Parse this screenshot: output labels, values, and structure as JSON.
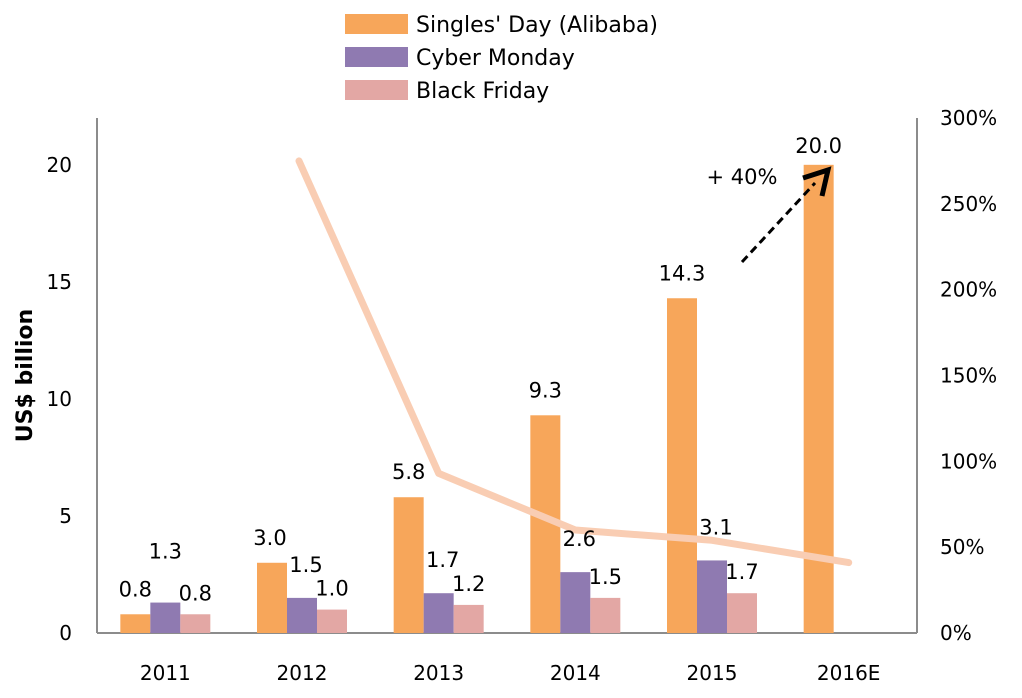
{
  "chart_data": {
    "type": "bar",
    "categories": [
      "2011",
      "2012",
      "2013",
      "2014",
      "2015",
      "2016E"
    ],
    "series": [
      {
        "name": "Singles' Day (Alibaba)",
        "values": [
          0.8,
          3.0,
          5.8,
          9.3,
          14.3,
          20.0
        ],
        "labels": [
          "0.8",
          "3.0",
          "5.8",
          "9.3",
          "14.3",
          "20.0"
        ],
        "color": "#F7A65A"
      },
      {
        "name": "Cyber Monday",
        "values": [
          1.3,
          1.5,
          1.7,
          2.6,
          3.1,
          null
        ],
        "labels": [
          "1.3",
          "1.5",
          "1.7",
          "2.6",
          "3.1",
          ""
        ],
        "color": "#8F7AB1"
      },
      {
        "name": "Black Friday",
        "values": [
          0.8,
          1.0,
          1.2,
          1.5,
          1.7,
          null
        ],
        "labels": [
          "0.8",
          "1.0",
          "1.2",
          "1.5",
          "1.7",
          ""
        ],
        "color": "#E3A7A4"
      }
    ],
    "line_series": {
      "axis": "right",
      "color": "#F9CDB3",
      "values": [
        null,
        275,
        93,
        60,
        54,
        41
      ]
    },
    "ylabel": "US$ billion",
    "ylim": [
      0,
      22
    ],
    "yticks": [
      "0",
      "5",
      "10",
      "15",
      "20"
    ],
    "y2lim": [
      0,
      300
    ],
    "y2ticks": [
      "0%",
      "50%",
      "100%",
      "150%",
      "200%",
      "250%",
      "300%"
    ],
    "annotation": "+ 40%",
    "legend_position": "top-center",
    "grid": false
  }
}
